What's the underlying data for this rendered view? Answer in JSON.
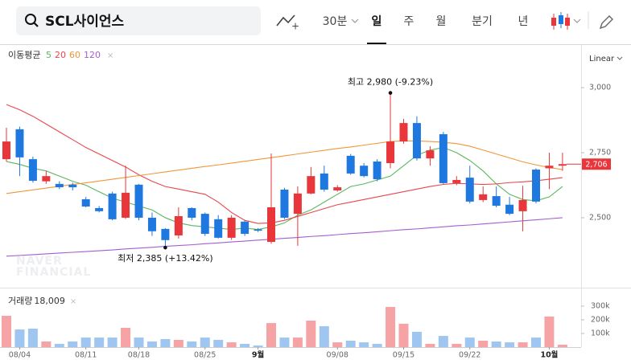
{
  "toolbar": {
    "search": "SCL사이언스",
    "tabs": [
      "30분",
      "일",
      "주",
      "월",
      "분기",
      "년"
    ],
    "selected_tab": "일"
  },
  "chart_data": {
    "type": "candlestick",
    "scale_label": "Linear",
    "watermark": [
      "NAVER",
      "FINANCIAL"
    ],
    "categories": [
      null,
      "08/04",
      null,
      null,
      null,
      null,
      "08/11",
      null,
      null,
      null,
      "08/18",
      null,
      null,
      null,
      null,
      "08/25",
      null,
      null,
      null,
      "9월",
      null,
      null,
      null,
      null,
      null,
      "09/08",
      null,
      null,
      null,
      null,
      "09/15",
      null,
      null,
      null,
      null,
      "09/22",
      null,
      null,
      null,
      null,
      null,
      "10월",
      null
    ],
    "open": [
      2725,
      2840,
      2725,
      2640,
      2630,
      2627,
      2571,
      2537,
      2593,
      2500,
      2627,
      2500,
      2457,
      2432,
      2537,
      2515,
      2494,
      2423,
      2485,
      2455,
      2407,
      2608,
      2515,
      2593,
      2670,
      2605,
      2738,
      2700,
      2716,
      2710,
      2793,
      2864,
      2728,
      2821,
      2633,
      2654,
      2568,
      2583,
      2550,
      2525,
      2685,
      2690,
      2700
    ],
    "high": [
      2846,
      2850,
      2735,
      2680,
      2640,
      2635,
      2580,
      2545,
      2600,
      2700,
      2630,
      2520,
      2460,
      2540,
      2540,
      2520,
      2510,
      2510,
      2490,
      2460,
      2747,
      2615,
      2620,
      2695,
      2700,
      2625,
      2745,
      2710,
      2725,
      2980,
      2880,
      2890,
      2775,
      2830,
      2660,
      2700,
      2620,
      2620,
      2580,
      2623,
      2690,
      2750,
      2750
    ],
    "low": [
      2716,
      2660,
      2635,
      2630,
      2610,
      2605,
      2540,
      2520,
      2490,
      2495,
      2490,
      2430,
      2385,
      2420,
      2490,
      2430,
      2420,
      2415,
      2430,
      2445,
      2400,
      2495,
      2392,
      2590,
      2600,
      2600,
      2665,
      2655,
      2640,
      2690,
      2785,
      2720,
      2700,
      2630,
      2625,
      2555,
      2560,
      2540,
      2510,
      2448,
      2555,
      2610,
      2680
    ],
    "close": [
      2793,
      2732,
      2642,
      2660,
      2617,
      2617,
      2543,
      2525,
      2494,
      2596,
      2500,
      2448,
      2414,
      2506,
      2500,
      2438,
      2423,
      2500,
      2438,
      2450,
      2540,
      2500,
      2593,
      2660,
      2608,
      2617,
      2670,
      2660,
      2648,
      2793,
      2864,
      2728,
      2759,
      2633,
      2645,
      2562,
      2590,
      2546,
      2515,
      2568,
      2562,
      2700,
      2706
    ],
    "up_color": "#e8363a",
    "down_color": "#1e78e0",
    "last_price_label": "2,706",
    "ylim": [
      2228,
      3164
    ],
    "yticks": [
      {
        "value": 2500,
        "label": "2,500"
      },
      {
        "value": 2750,
        "label": "2,750"
      },
      {
        "value": 3000,
        "label": "3,000"
      }
    ],
    "ma_title": "이동평균",
    "ma": [
      {
        "name": "5",
        "color": "#59b85c",
        "values": [
          2716,
          2705,
          2690,
          2680,
          2660,
          2640,
          2625,
          2600,
          2575,
          2560,
          2545,
          2530,
          2500,
          2480,
          2470,
          2465,
          2460,
          2455,
          2460,
          2455,
          2465,
          2480,
          2510,
          2530,
          2560,
          2590,
          2620,
          2630,
          2645,
          2660,
          2700,
          2740,
          2760,
          2770,
          2750,
          2720,
          2680,
          2630,
          2590,
          2570,
          2565,
          2580,
          2620
        ]
      },
      {
        "name": "20",
        "color": "#e8474b",
        "values": [
          2935,
          2915,
          2890,
          2860,
          2830,
          2800,
          2770,
          2745,
          2720,
          2695,
          2665,
          2640,
          2620,
          2610,
          2600,
          2590,
          2560,
          2520,
          2490,
          2478,
          2480,
          2490,
          2505,
          2520,
          2535,
          2550,
          2560,
          2570,
          2580,
          2590,
          2600,
          2610,
          2620,
          2628,
          2632,
          2630,
          2628,
          2630,
          2635,
          2638,
          2642,
          2648,
          2654
        ]
      },
      {
        "name": "60",
        "color": "#f2963a",
        "values": [
          2593,
          2600,
          2607,
          2614,
          2621,
          2628,
          2634,
          2641,
          2648,
          2655,
          2662,
          2669,
          2676,
          2683,
          2690,
          2697,
          2703,
          2710,
          2717,
          2724,
          2731,
          2738,
          2745,
          2752,
          2759,
          2766,
          2772,
          2779,
          2786,
          2793,
          2795,
          2795,
          2793,
          2790,
          2785,
          2775,
          2760,
          2745,
          2730,
          2715,
          2703,
          2693,
          2685
        ]
      },
      {
        "name": "120",
        "color": "#a25fcf",
        "values": [
          2352,
          2355,
          2358,
          2361,
          2364,
          2367,
          2370,
          2373,
          2376,
          2380,
          2383,
          2386,
          2390,
          2393,
          2396,
          2400,
          2403,
          2407,
          2410,
          2414,
          2417,
          2421,
          2424,
          2428,
          2431,
          2435,
          2439,
          2442,
          2446,
          2450,
          2454,
          2457,
          2461,
          2465,
          2469,
          2472,
          2476,
          2480,
          2484,
          2488,
          2492,
          2496,
          2500
        ]
      }
    ],
    "annotations": [
      {
        "text": "최고  2,980 (-9.23%)",
        "index": 29
      },
      {
        "text": "최저  2,385 (+13.42%)",
        "index": 12
      }
    ],
    "volume": {
      "title": "거래량",
      "current": "18,009",
      "values": [
        229000,
        129000,
        135000,
        41000,
        24000,
        41000,
        70000,
        70000,
        70000,
        141000,
        70000,
        41000,
        59000,
        53000,
        41000,
        70000,
        53000,
        35000,
        24000,
        12000,
        176000,
        70000,
        70000,
        194000,
        153000,
        35000,
        47000,
        35000,
        24000,
        294000,
        171000,
        112000,
        24000,
        82000,
        24000,
        70000,
        47000,
        41000,
        35000,
        35000,
        70000,
        224000,
        18009
      ],
      "up_color": "#f5a3a5",
      "down_color": "#9fc6f0",
      "ylim": [
        0,
        423000
      ],
      "yticks": [
        {
          "value": 100000,
          "label": "100k"
        },
        {
          "value": 200000,
          "label": "200k"
        },
        {
          "value": 300000,
          "label": "300k"
        }
      ]
    }
  }
}
